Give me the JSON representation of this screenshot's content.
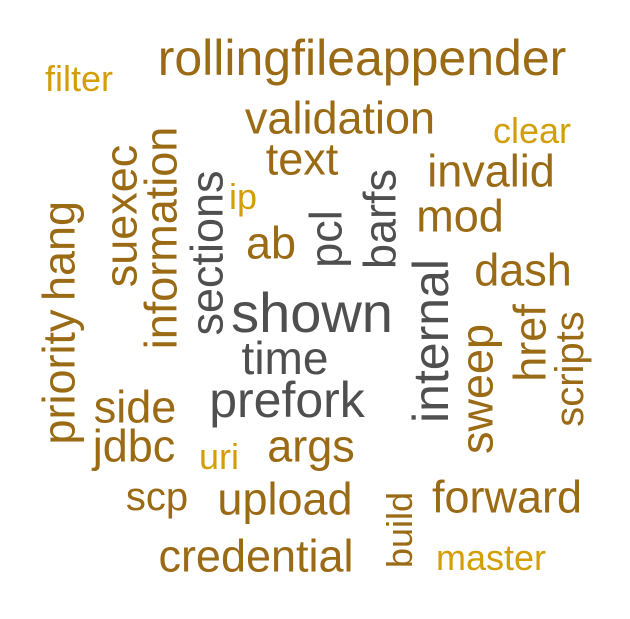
{
  "colors": {
    "brown": "#9a6a14",
    "gold": "#d39e06",
    "gray": "#4f4f4f"
  },
  "words": [
    {
      "text": "rollingfileappender",
      "color": "brown",
      "orientation": "horizontal"
    },
    {
      "text": "filter",
      "color": "gold",
      "orientation": "horizontal"
    },
    {
      "text": "validation",
      "color": "brown",
      "orientation": "horizontal"
    },
    {
      "text": "clear",
      "color": "gold",
      "orientation": "horizontal"
    },
    {
      "text": "text",
      "color": "brown",
      "orientation": "horizontal"
    },
    {
      "text": "invalid",
      "color": "brown",
      "orientation": "horizontal"
    },
    {
      "text": "ip",
      "color": "gold",
      "orientation": "horizontal"
    },
    {
      "text": "mod",
      "color": "brown",
      "orientation": "horizontal"
    },
    {
      "text": "ab",
      "color": "brown",
      "orientation": "horizontal"
    },
    {
      "text": "dash",
      "color": "brown",
      "orientation": "horizontal"
    },
    {
      "text": "shown",
      "color": "gray",
      "orientation": "horizontal"
    },
    {
      "text": "time",
      "color": "gray",
      "orientation": "horizontal"
    },
    {
      "text": "prefork",
      "color": "gray",
      "orientation": "horizontal"
    },
    {
      "text": "side",
      "color": "brown",
      "orientation": "horizontal"
    },
    {
      "text": "jdbc",
      "color": "brown",
      "orientation": "horizontal"
    },
    {
      "text": "args",
      "color": "brown",
      "orientation": "horizontal"
    },
    {
      "text": "uri",
      "color": "gold",
      "orientation": "horizontal"
    },
    {
      "text": "scp",
      "color": "brown",
      "orientation": "horizontal"
    },
    {
      "text": "upload",
      "color": "brown",
      "orientation": "horizontal"
    },
    {
      "text": "forward",
      "color": "brown",
      "orientation": "horizontal"
    },
    {
      "text": "credential",
      "color": "brown",
      "orientation": "horizontal"
    },
    {
      "text": "master",
      "color": "gold",
      "orientation": "horizontal"
    },
    {
      "text": "priority",
      "color": "brown",
      "orientation": "vertical"
    },
    {
      "text": "hang",
      "color": "brown",
      "orientation": "vertical"
    },
    {
      "text": "suexec",
      "color": "brown",
      "orientation": "vertical"
    },
    {
      "text": "information",
      "color": "brown",
      "orientation": "vertical"
    },
    {
      "text": "sections",
      "color": "gray",
      "orientation": "vertical"
    },
    {
      "text": "pcl",
      "color": "gray",
      "orientation": "vertical"
    },
    {
      "text": "barfs",
      "color": "gray",
      "orientation": "vertical"
    },
    {
      "text": "internal",
      "color": "gray",
      "orientation": "vertical"
    },
    {
      "text": "sweep",
      "color": "brown",
      "orientation": "vertical"
    },
    {
      "text": "href",
      "color": "brown",
      "orientation": "vertical"
    },
    {
      "text": "scripts",
      "color": "brown",
      "orientation": "vertical"
    },
    {
      "text": "build",
      "color": "brown",
      "orientation": "vertical"
    }
  ]
}
